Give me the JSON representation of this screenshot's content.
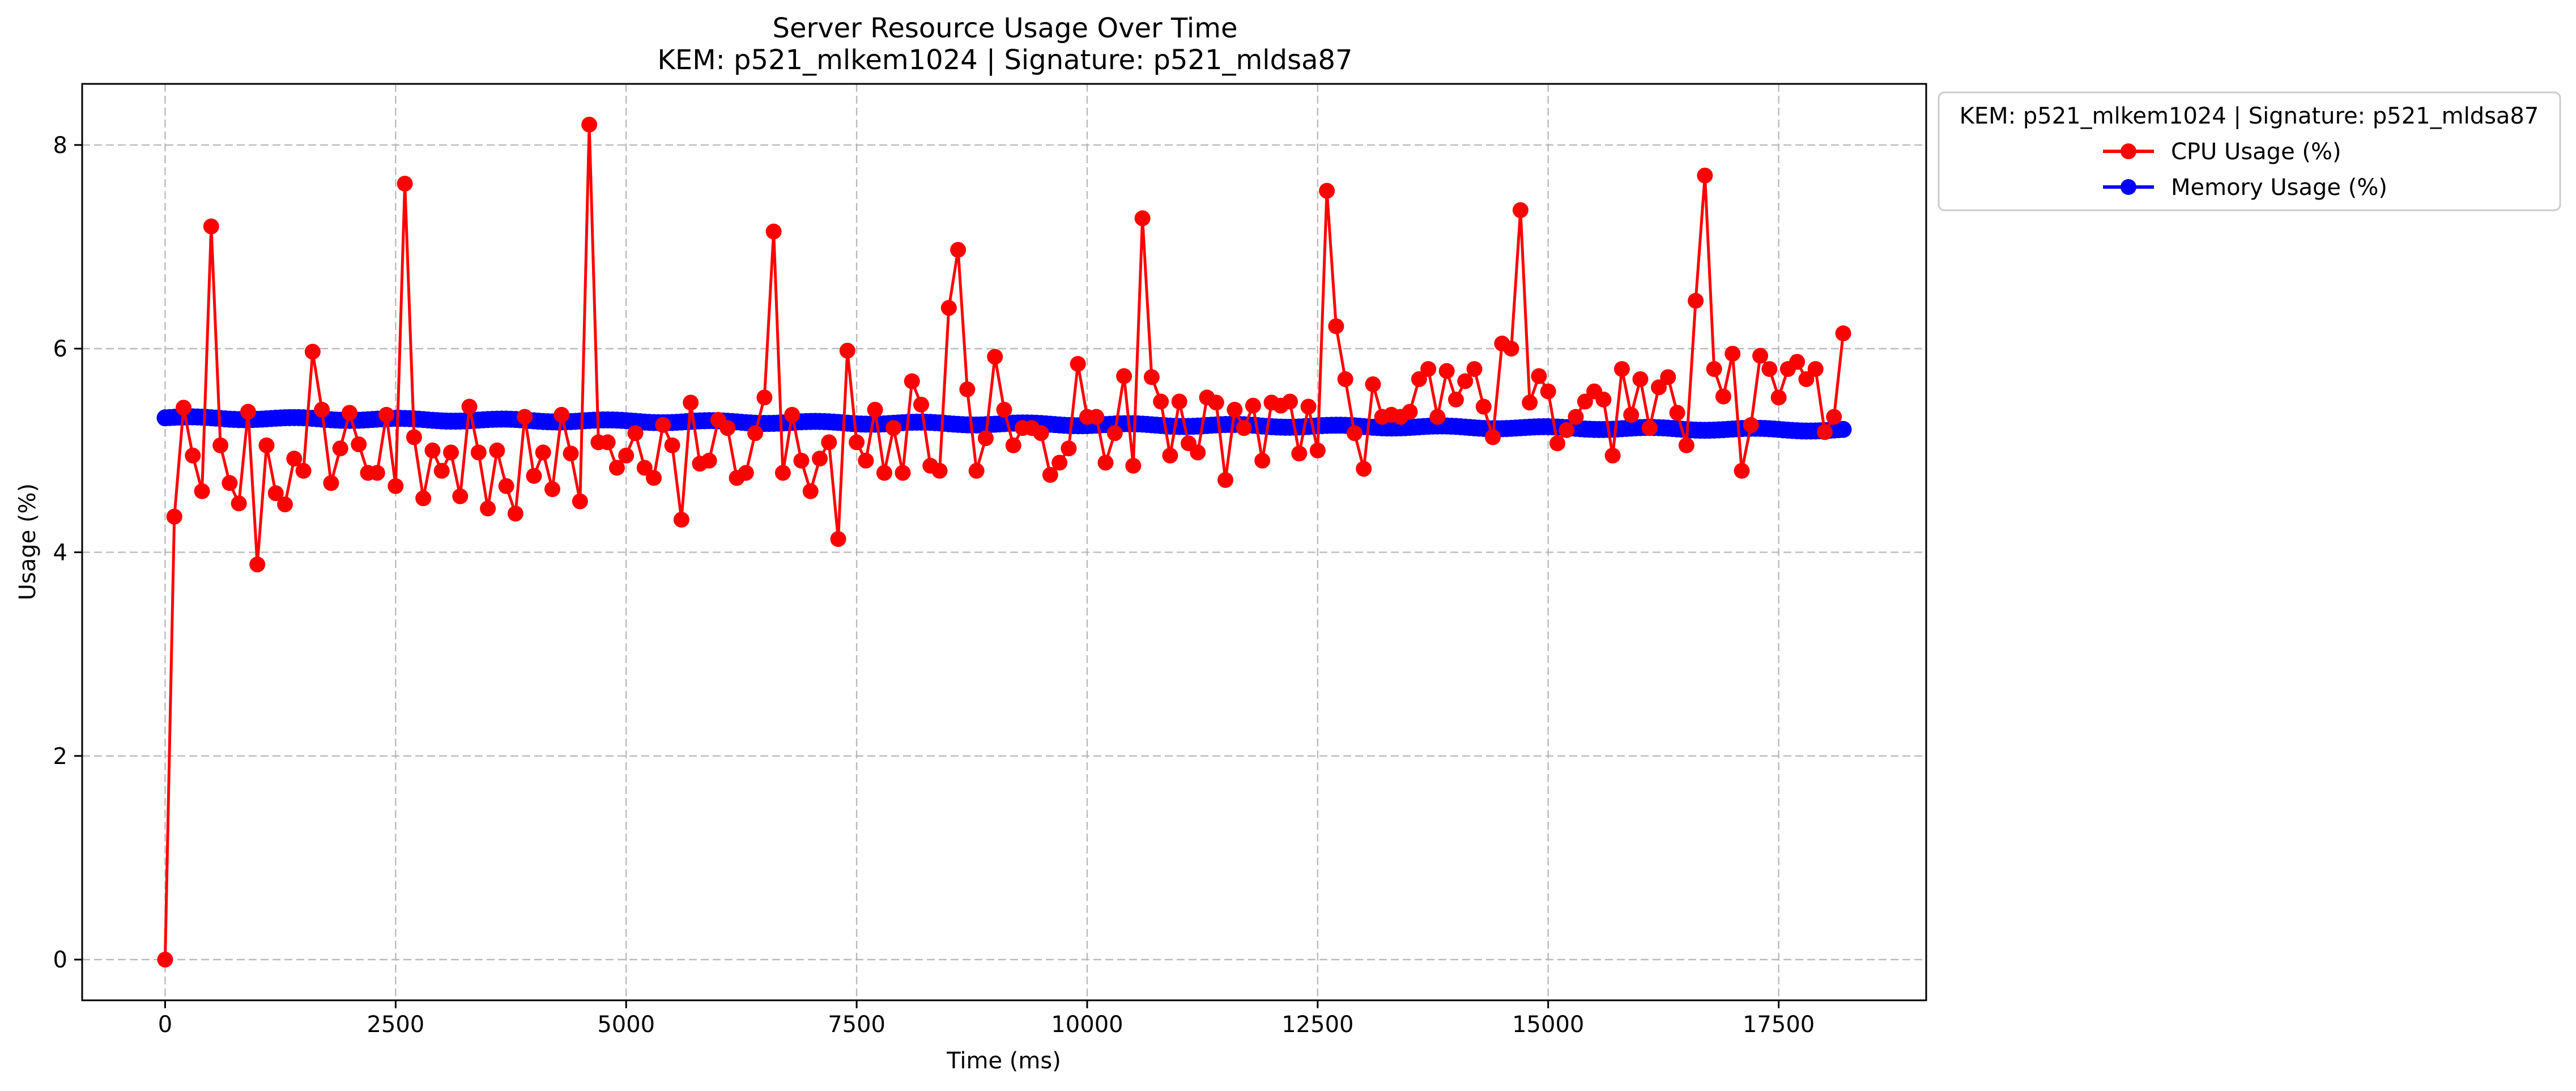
{
  "chart_data": {
    "type": "line",
    "title": "Server Resource Usage Over Time",
    "subtitle": "KEM: p521_mlkem1024 | Signature: p521_mldsa87",
    "xlabel": "Time (ms)",
    "ylabel": "Usage (%)",
    "xlim": [
      -900,
      19100
    ],
    "ylim": [
      -0.4,
      8.6
    ],
    "xticks": [
      0,
      2500,
      5000,
      7500,
      10000,
      12500,
      15000,
      17500
    ],
    "xtick_labels": [
      "0",
      "2500",
      "5000",
      "7500",
      "10000",
      "12500",
      "15000",
      "17500"
    ],
    "yticks": [
      0,
      2,
      4,
      6,
      8
    ],
    "ytick_labels": [
      "0",
      "2",
      "4",
      "6",
      "8"
    ],
    "grid": true,
    "legend": {
      "title": "KEM: p521_mlkem1024 | Signature: p521_mldsa87",
      "placement": "outside-upper-right"
    },
    "series": [
      {
        "name": "CPU Usage (%)",
        "color": "#ff0000",
        "marker": "circle",
        "x": [
          0,
          100,
          200,
          300,
          400,
          500,
          600,
          700,
          800,
          900,
          1000,
          1100,
          1200,
          1300,
          1400,
          1500,
          1600,
          1700,
          1800,
          1900,
          2000,
          2100,
          2200,
          2300,
          2400,
          2500,
          2600,
          2700,
          2800,
          2900,
          3000,
          3100,
          3200,
          3300,
          3400,
          3500,
          3600,
          3700,
          3800,
          3900,
          4000,
          4100,
          4200,
          4300,
          4400,
          4500,
          4600,
          4700,
          4800,
          4900,
          5000,
          5100,
          5200,
          5300,
          5400,
          5500,
          5600,
          5700,
          5800,
          5900,
          6000,
          6100,
          6200,
          6300,
          6400,
          6500,
          6600,
          6700,
          6800,
          6900,
          7000,
          7100,
          7200,
          7300,
          7400,
          7500,
          7600,
          7700,
          7800,
          7900,
          8000,
          8100,
          8200,
          8300,
          8400,
          8500,
          8600,
          8700,
          8800,
          8900,
          9000,
          9100,
          9200,
          9300,
          9400,
          9500,
          9600,
          9700,
          9800,
          9900,
          10000,
          10100,
          10200,
          10300,
          10400,
          10500,
          10600,
          10700,
          10800,
          10900,
          11000,
          11100,
          11200,
          11300,
          11400,
          11500,
          11600,
          11700,
          11800,
          11900,
          12000,
          12100,
          12200,
          12300,
          12400,
          12500,
          12600,
          12700,
          12800,
          12900,
          13000,
          13100,
          13200,
          13300,
          13400,
          13500,
          13600,
          13700,
          13800,
          13900,
          14000,
          14100,
          14200,
          14300,
          14400,
          14500,
          14600,
          14700,
          14800,
          14900,
          15000,
          15100,
          15200,
          15300,
          15400,
          15500,
          15600,
          15700,
          15800,
          15900,
          16000,
          16100,
          16200,
          16300,
          16400,
          16500,
          16600,
          16700,
          16800,
          16900,
          17000,
          17100,
          17200,
          17300,
          17400,
          17500,
          17600,
          17700,
          17800,
          17900,
          18000,
          18100,
          18200
        ],
        "y": [
          0.0,
          4.35,
          5.42,
          4.95,
          4.6,
          7.2,
          5.05,
          4.68,
          4.48,
          5.38,
          3.88,
          5.05,
          4.58,
          4.47,
          4.92,
          4.8,
          5.97,
          5.4,
          4.68,
          5.02,
          5.37,
          5.06,
          4.78,
          4.78,
          5.35,
          4.65,
          7.62,
          5.13,
          4.53,
          5.0,
          4.8,
          4.98,
          4.55,
          5.43,
          4.98,
          4.43,
          5.0,
          4.65,
          4.38,
          5.33,
          4.75,
          4.98,
          4.62,
          5.35,
          4.97,
          4.5,
          8.2,
          5.08,
          5.08,
          4.83,
          4.95,
          5.17,
          4.83,
          4.73,
          5.25,
          5.05,
          4.32,
          5.47,
          4.87,
          4.9,
          5.3,
          5.22,
          4.73,
          4.78,
          5.17,
          5.52,
          7.15,
          4.78,
          5.35,
          4.9,
          4.6,
          4.92,
          5.08,
          4.13,
          5.98,
          5.08,
          4.9,
          5.4,
          4.78,
          5.22,
          4.78,
          5.68,
          5.45,
          4.85,
          4.8,
          6.4,
          6.97,
          5.6,
          4.8,
          5.12,
          5.92,
          5.4,
          5.05,
          5.22,
          5.22,
          5.17,
          4.76,
          4.88,
          5.02,
          5.85,
          5.33,
          5.33,
          4.88,
          5.17,
          5.73,
          4.85,
          7.28,
          5.72,
          5.48,
          4.95,
          5.48,
          5.07,
          4.98,
          5.52,
          5.47,
          4.71,
          5.4,
          5.22,
          5.44,
          4.9,
          5.47,
          5.44,
          5.48,
          4.97,
          5.43,
          5.0,
          7.55,
          6.22,
          5.7,
          5.17,
          4.82,
          5.65,
          5.33,
          5.35,
          5.33,
          5.38,
          5.7,
          5.8,
          5.33,
          5.78,
          5.5,
          5.68,
          5.8,
          5.43,
          5.13,
          6.05,
          6.0,
          7.36,
          5.47,
          5.73,
          5.58,
          5.07,
          5.2,
          5.33,
          5.48,
          5.58,
          5.5,
          4.95,
          5.8,
          5.35,
          5.7,
          5.22,
          5.62,
          5.72,
          5.37,
          5.05,
          6.47,
          7.7,
          5.8,
          5.53,
          5.95,
          4.8,
          5.25,
          5.93,
          5.8,
          5.52,
          5.8,
          5.87,
          5.7,
          5.8,
          5.18,
          5.33,
          6.15
        ]
      },
      {
        "name": "Memory Usage (%)",
        "color": "#0000ff",
        "marker": "circle",
        "x_range": [
          0,
          18200
        ],
        "x_step": 50,
        "start": 5.32,
        "end": 5.2
      }
    ]
  }
}
